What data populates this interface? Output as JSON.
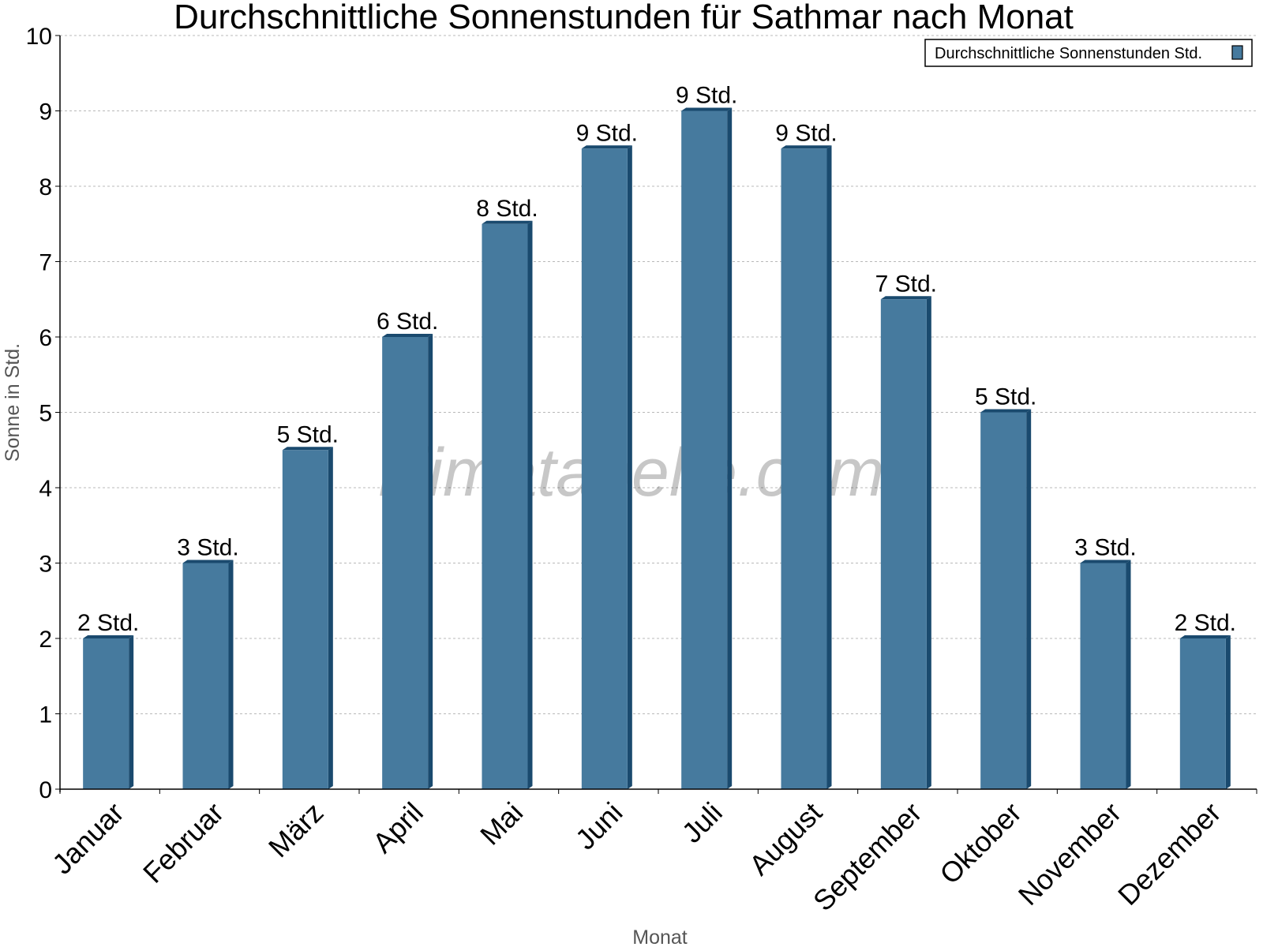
{
  "chart_data": {
    "type": "bar",
    "title": "Durchschnittliche Sonnenstunden für Sathmar nach Monat",
    "xlabel": "Monat",
    "ylabel": "Sonne in Std.",
    "ylim": [
      0,
      10
    ],
    "yticks": [
      "0",
      "1",
      "2",
      "3",
      "4",
      "5",
      "6",
      "7",
      "8",
      "9",
      "10"
    ],
    "grid": true,
    "legend_position": "top-right",
    "categories": [
      "Januar",
      "Februar",
      "März",
      "April",
      "Mai",
      "Juni",
      "Juli",
      "August",
      "September",
      "Oktober",
      "November",
      "Dezember"
    ],
    "series": [
      {
        "name": "Durchschnittliche Sonnenstunden Std.",
        "values": [
          2,
          3,
          4.5,
          6,
          7.5,
          8.5,
          9,
          8.5,
          6.5,
          5,
          3,
          2
        ],
        "labels": [
          "2 Std.",
          "3 Std.",
          "5 Std.",
          "6 Std.",
          "8 Std.",
          "9 Std.",
          "9 Std.",
          "9 Std.",
          "7 Std.",
          "5 Std.",
          "3 Std.",
          "2 Std."
        ],
        "color": "#467a9e",
        "shadow_color": "#1a4a6e"
      }
    ],
    "watermark": "klimatabelle.com"
  }
}
